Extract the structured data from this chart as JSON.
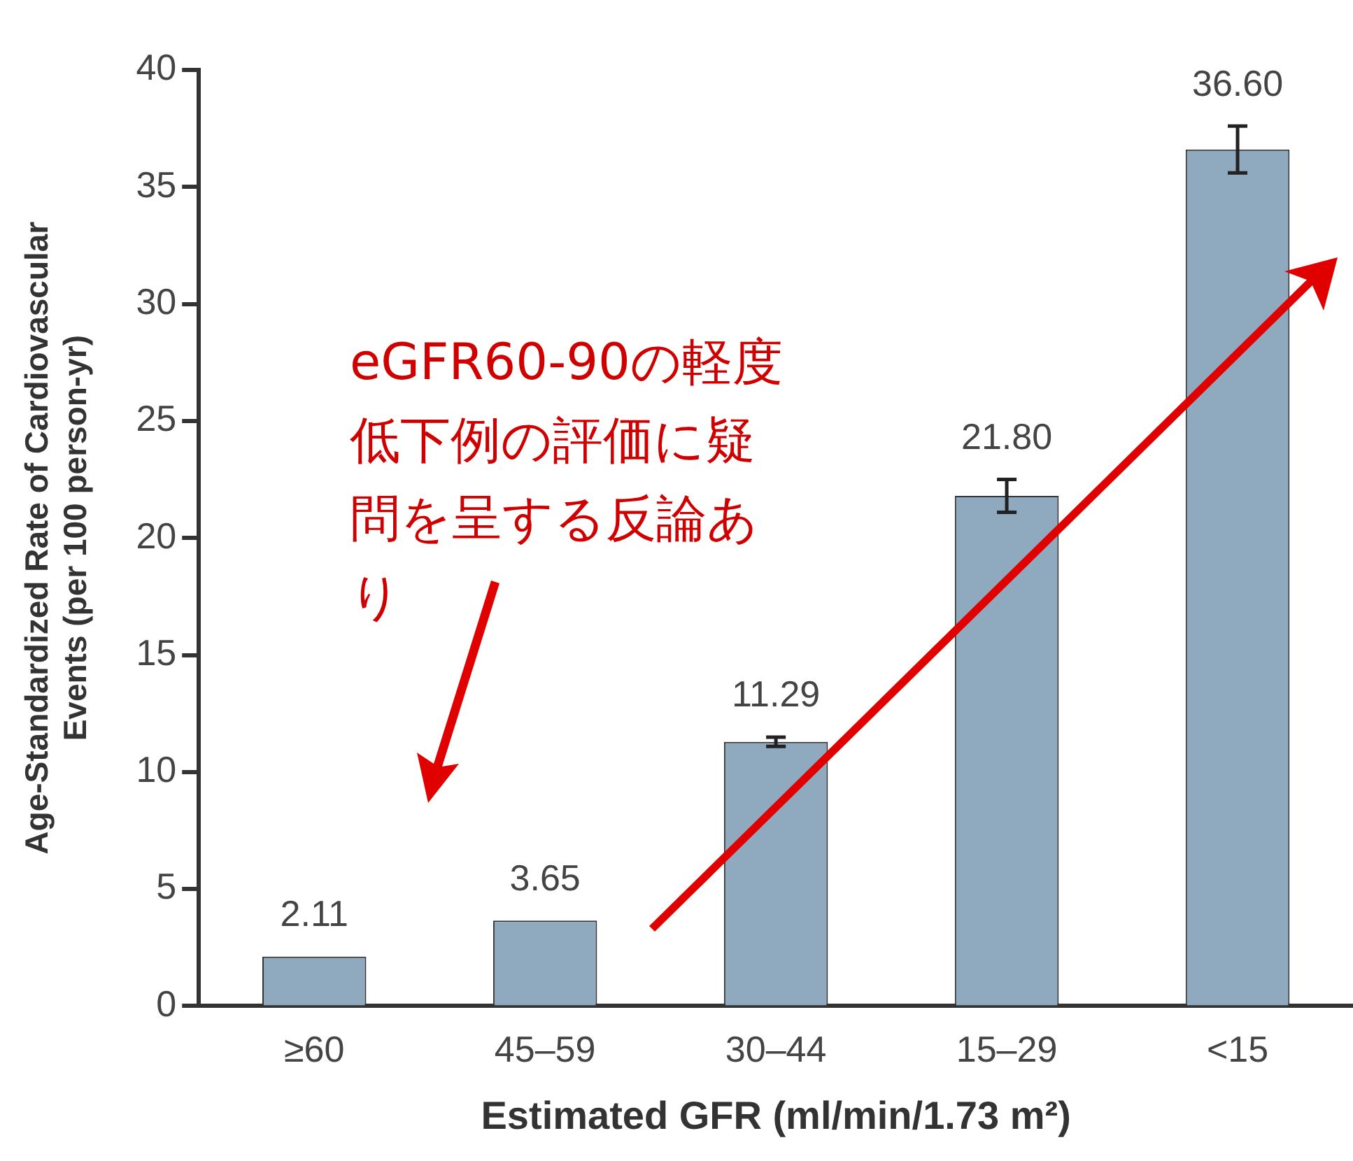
{
  "chart_data": {
    "type": "bar",
    "xlabel": "Estimated GFR (ml/min/1.73 m²)",
    "ylabel": "Age-Standardized Rate of Cardiovascular\nEvents (per 100 person-yr)",
    "categories": [
      "≥60",
      "45–59",
      "30–44",
      "15–29",
      "<15"
    ],
    "values": [
      2.11,
      3.65,
      11.29,
      21.8,
      36.6
    ],
    "errors": [
      null,
      null,
      0.2,
      0.7,
      1.0
    ],
    "color": "#8fa9bf",
    "value_labels": [
      "2.11",
      "3.65",
      "11.29",
      "21.80",
      "36.60"
    ],
    "ylim": [
      0,
      40
    ],
    "yticks": [
      0,
      5,
      10,
      15,
      20,
      25,
      30,
      35,
      40
    ],
    "grid": false,
    "legend": false,
    "annotations": [
      "eGFR60-90の軽度低下例の評価に疑問を呈する反論あり"
    ]
  }
}
